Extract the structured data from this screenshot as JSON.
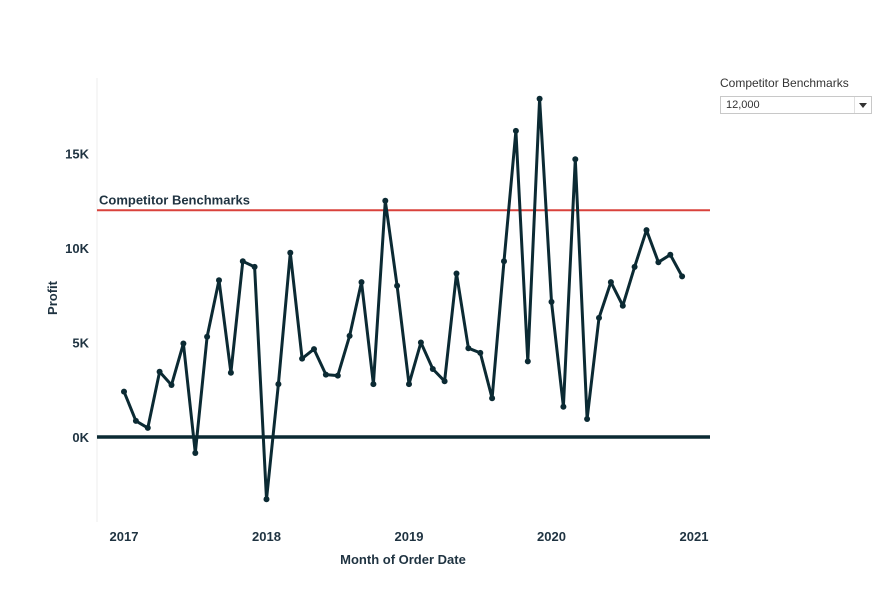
{
  "chart_data": {
    "type": "line",
    "xlabel": "Month of Order Date",
    "ylabel": "Profit",
    "x_ticks": [
      "2017",
      "2018",
      "2019",
      "2020",
      "2021"
    ],
    "y_ticks": [
      {
        "value": 0,
        "label": "0K"
      },
      {
        "value": 5000,
        "label": "5K"
      },
      {
        "value": 10000,
        "label": "10K"
      },
      {
        "value": 15000,
        "label": "15K"
      }
    ],
    "ylim": [
      -4500,
      19000
    ],
    "xlim": [
      "2016-11",
      "2021-01"
    ],
    "grid": false,
    "reference_line": {
      "label": "Competitor Benchmarks",
      "value": 12000,
      "color": "#d9423c"
    },
    "zero_line_color": "#0b2a33",
    "series": [
      {
        "color": "#0b2a33",
        "points": [
          {
            "x": "2017-01",
            "y": 2400
          },
          {
            "x": "2017-02",
            "y": 850
          },
          {
            "x": "2017-03",
            "y": 480
          },
          {
            "x": "2017-04",
            "y": 3450
          },
          {
            "x": "2017-05",
            "y": 2750
          },
          {
            "x": "2017-06",
            "y": 4950
          },
          {
            "x": "2017-07",
            "y": -850
          },
          {
            "x": "2017-08",
            "y": 5300
          },
          {
            "x": "2017-09",
            "y": 8300
          },
          {
            "x": "2017-10",
            "y": 3400
          },
          {
            "x": "2017-11",
            "y": 9300
          },
          {
            "x": "2017-12",
            "y": 9000
          },
          {
            "x": "2018-01",
            "y": -3300
          },
          {
            "x": "2018-02",
            "y": 2800
          },
          {
            "x": "2018-03",
            "y": 9750
          },
          {
            "x": "2018-04",
            "y": 4150
          },
          {
            "x": "2018-05",
            "y": 4650
          },
          {
            "x": "2018-06",
            "y": 3300
          },
          {
            "x": "2018-07",
            "y": 3250
          },
          {
            "x": "2018-08",
            "y": 5350
          },
          {
            "x": "2018-09",
            "y": 8200
          },
          {
            "x": "2018-10",
            "y": 2800
          },
          {
            "x": "2018-11",
            "y": 12500
          },
          {
            "x": "2018-12",
            "y": 8000
          },
          {
            "x": "2019-01",
            "y": 2800
          },
          {
            "x": "2019-02",
            "y": 5000
          },
          {
            "x": "2019-03",
            "y": 3600
          },
          {
            "x": "2019-04",
            "y": 2950
          },
          {
            "x": "2019-05",
            "y": 8650
          },
          {
            "x": "2019-06",
            "y": 4700
          },
          {
            "x": "2019-07",
            "y": 4450
          },
          {
            "x": "2019-08",
            "y": 2050
          },
          {
            "x": "2019-09",
            "y": 9300
          },
          {
            "x": "2019-10",
            "y": 16200
          },
          {
            "x": "2019-11",
            "y": 4000
          },
          {
            "x": "2019-12",
            "y": 17900
          },
          {
            "x": "2020-01",
            "y": 7150
          },
          {
            "x": "2020-02",
            "y": 1600
          },
          {
            "x": "2020-03",
            "y": 14700
          },
          {
            "x": "2020-04",
            "y": 950
          },
          {
            "x": "2020-05",
            "y": 6300
          },
          {
            "x": "2020-06",
            "y": 8200
          },
          {
            "x": "2020-07",
            "y": 6950
          },
          {
            "x": "2020-08",
            "y": 9000
          },
          {
            "x": "2020-09",
            "y": 10950
          },
          {
            "x": "2020-10",
            "y": 9250
          },
          {
            "x": "2020-11",
            "y": 9650
          },
          {
            "x": "2020-12",
            "y": 8500
          }
        ]
      }
    ]
  },
  "parameter": {
    "title": "Competitor Benchmarks",
    "selected": "12,000"
  }
}
